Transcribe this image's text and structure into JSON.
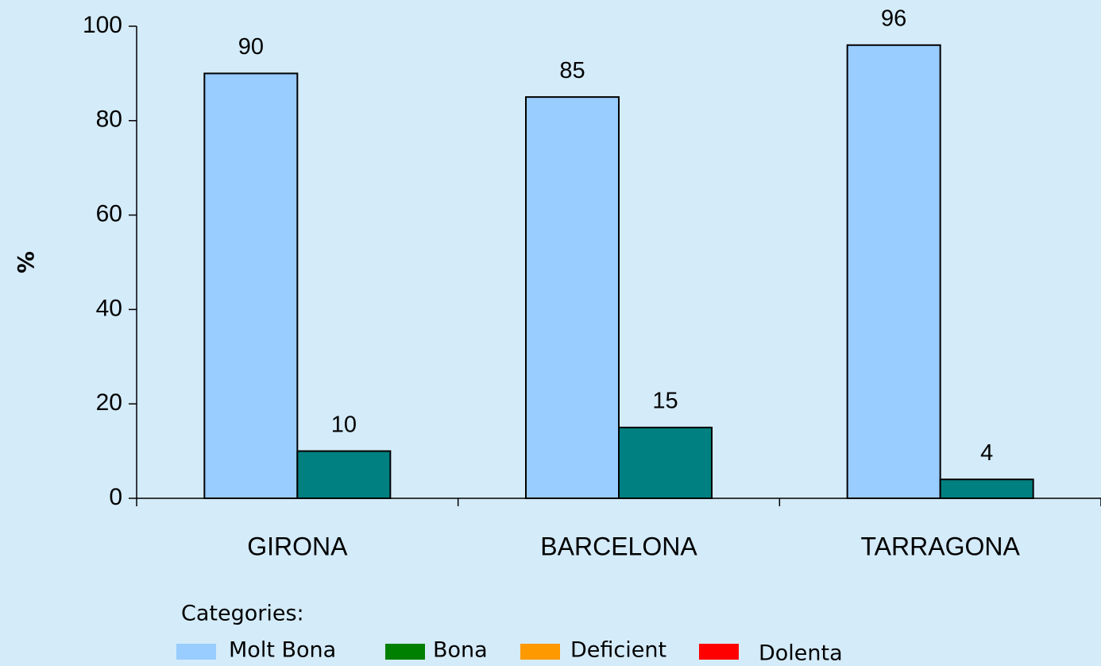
{
  "chart_data": {
    "type": "bar",
    "categories": [
      "GIRONA",
      "BARCELONA",
      "TARRAGONA"
    ],
    "series": [
      {
        "name": "Molt Bona",
        "color": "#99ccff",
        "values": [
          90,
          85,
          96
        ]
      },
      {
        "name": "Bona",
        "color": "#008080",
        "legend_color": "#008000",
        "values": [
          10,
          15,
          4
        ]
      },
      {
        "name": "Deficient",
        "color": "#ff9900",
        "values": [
          null,
          null,
          null
        ]
      },
      {
        "name": "Dolenta",
        "color": "#ff0000",
        "values": [
          null,
          null,
          null
        ]
      }
    ],
    "ylabel": "%",
    "ylim": [
      0,
      100
    ],
    "yticks": [
      0,
      20,
      40,
      60,
      80,
      100
    ],
    "legend_title": "Categories:",
    "legend": "bottom"
  }
}
